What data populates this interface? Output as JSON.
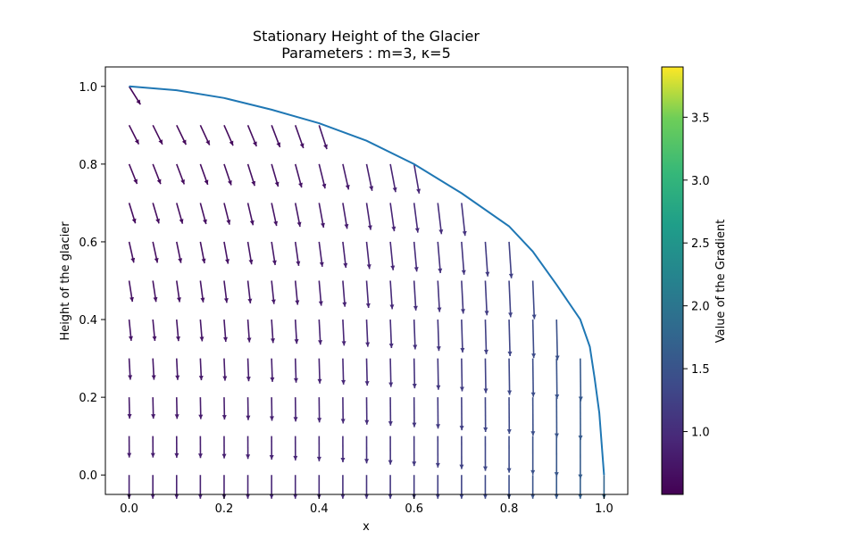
{
  "chart_data": {
    "type": "quiver",
    "title": "Stationary Height of the Glacier",
    "subtitle": "Parameters : m=3, κ=5",
    "xlabel": "x",
    "ylabel": "Height of the glacier",
    "colorbar_label": "Value of the Gradient",
    "xlim": [
      -0.05,
      1.05
    ],
    "ylim": [
      -0.05,
      1.05
    ],
    "x_ticks": [
      0.0,
      0.2,
      0.4,
      0.6,
      0.8,
      1.0
    ],
    "y_ticks": [
      0.0,
      0.2,
      0.4,
      0.6,
      0.8,
      1.0
    ],
    "x_tick_labels": [
      "0.0",
      "0.2",
      "0.4",
      "0.6",
      "0.8",
      "1.0"
    ],
    "y_tick_labels": [
      "0.0",
      "0.2",
      "0.4",
      "0.6",
      "0.8",
      "1.0"
    ],
    "colorbar_range": [
      0.5,
      3.9
    ],
    "colorbar_ticks": [
      1.0,
      1.5,
      2.0,
      2.5,
      3.0,
      3.5
    ],
    "colorbar_tick_labels": [
      "1.0",
      "1.5",
      "2.0",
      "2.5",
      "3.0",
      "3.5"
    ],
    "colormap": "viridis",
    "line_color": "#1f77b4",
    "parameters": {
      "m": 3,
      "kappa": 5
    },
    "profile_curve": [
      [
        0.0,
        1.0
      ],
      [
        0.1,
        0.99
      ],
      [
        0.2,
        0.97
      ],
      [
        0.3,
        0.94
      ],
      [
        0.4,
        0.905
      ],
      [
        0.5,
        0.86
      ],
      [
        0.6,
        0.8
      ],
      [
        0.7,
        0.725
      ],
      [
        0.8,
        0.64
      ],
      [
        0.85,
        0.575
      ],
      [
        0.9,
        0.49
      ],
      [
        0.95,
        0.4
      ],
      [
        0.97,
        0.33
      ],
      [
        0.98,
        0.25
      ],
      [
        0.99,
        0.16
      ],
      [
        1.0,
        0.0
      ]
    ],
    "grid_x_count": 21,
    "grid_y_values": [
      0.0,
      0.1,
      0.2,
      0.3,
      0.4,
      0.5,
      0.6,
      0.7,
      0.8,
      0.9,
      1.0
    ],
    "grid_on": false
  }
}
